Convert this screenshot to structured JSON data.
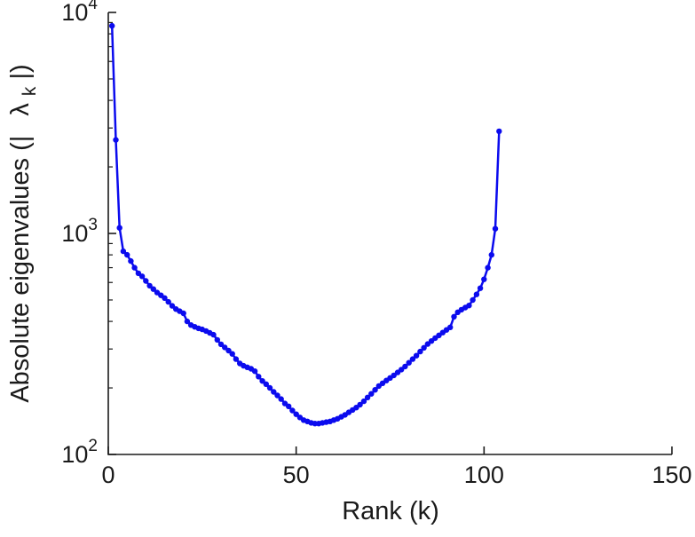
{
  "figure": {
    "background": "#ffffff",
    "axes_color": "#1a1a1a"
  },
  "chart_data": {
    "type": "line",
    "title": "",
    "xlabel": "Rank (k)",
    "ylabel_parts": {
      "prefix": "Absolute eigenvalues (|",
      "symbol": "λ",
      "subscript": "k",
      "suffix": "|)"
    },
    "x_scale": "linear",
    "y_scale": "log",
    "xlim": [
      0,
      150
    ],
    "ylim": [
      100,
      10000
    ],
    "x_ticks": [
      0,
      50,
      100,
      150
    ],
    "y_ticks": [
      {
        "value": 100,
        "base": "10",
        "exp": "2"
      },
      {
        "value": 1000,
        "base": "10",
        "exp": "3"
      },
      {
        "value": 10000,
        "base": "10",
        "exp": "4"
      }
    ],
    "grid": false,
    "legend": "none",
    "series": [
      {
        "name": "absolute-eigenvalues",
        "color": "#0b0bee",
        "marker": "circle",
        "line_width": 2.5,
        "marker_radius": 3.2,
        "x_start": 1,
        "x_step": 1,
        "values": [
          8700,
          2650,
          1060,
          830,
          800,
          750,
          700,
          660,
          640,
          610,
          580,
          560,
          540,
          525,
          510,
          490,
          470,
          455,
          445,
          435,
          400,
          385,
          378,
          372,
          368,
          362,
          355,
          348,
          330,
          315,
          305,
          295,
          285,
          270,
          258,
          252,
          248,
          244,
          238,
          225,
          215,
          208,
          200,
          192,
          185,
          178,
          170,
          165,
          158,
          152,
          147,
          143,
          141,
          139,
          138,
          138,
          139,
          140,
          141,
          143,
          145,
          148,
          151,
          155,
          159,
          163,
          168,
          174,
          181,
          188,
          196,
          204,
          210,
          216,
          222,
          228,
          235,
          242,
          250,
          260,
          270,
          280,
          292,
          304,
          316,
          326,
          336,
          346,
          356,
          366,
          376,
          420,
          440,
          452,
          462,
          472,
          500,
          530,
          565,
          620,
          700,
          800,
          1050,
          2900
        ]
      }
    ]
  }
}
